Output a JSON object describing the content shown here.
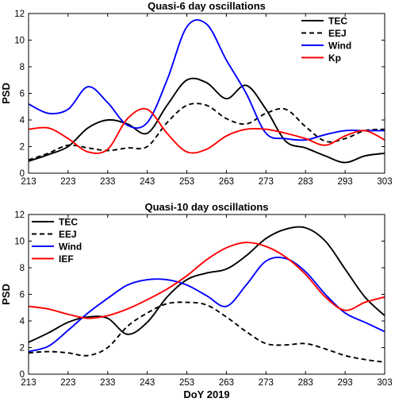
{
  "chart_data": [
    {
      "type": "line",
      "title": "Quasi-6 day oscillations",
      "ylabel": "PSD",
      "xlabel": "",
      "xlim": [
        213,
        303
      ],
      "ylim": [
        0,
        12
      ],
      "xticks": [
        213,
        223,
        233,
        243,
        253,
        263,
        273,
        283,
        293,
        303
      ],
      "yticks": [
        0,
        2,
        4,
        6,
        8,
        10,
        12
      ],
      "grid": false,
      "legend_position": "top-right",
      "series": [
        {
          "name": "TEC",
          "color": "#000000",
          "dash": "solid",
          "x": [
            213,
            218,
            223,
            228,
            233,
            238,
            243,
            248,
            253,
            258,
            263,
            268,
            273,
            278,
            283,
            288,
            293,
            298,
            303
          ],
          "y": [
            0.9,
            1.4,
            2.0,
            3.4,
            4.0,
            3.7,
            3.0,
            5.1,
            7.0,
            6.8,
            5.6,
            6.6,
            4.8,
            2.4,
            1.9,
            1.3,
            0.8,
            1.3,
            1.5
          ]
        },
        {
          "name": "EEJ",
          "color": "#000000",
          "dash": "dashed",
          "x": [
            213,
            218,
            223,
            228,
            233,
            238,
            243,
            248,
            253,
            258,
            263,
            268,
            273,
            278,
            283,
            288,
            293,
            298,
            303
          ],
          "y": [
            1.0,
            1.5,
            2.1,
            1.9,
            1.7,
            1.9,
            2.0,
            3.8,
            5.1,
            5.1,
            4.1,
            3.7,
            4.5,
            4.8,
            3.5,
            2.4,
            2.6,
            3.2,
            3.3
          ]
        },
        {
          "name": "Wind",
          "color": "#0000ff",
          "dash": "solid",
          "x": [
            213,
            218,
            223,
            228,
            233,
            238,
            243,
            248,
            253,
            258,
            263,
            268,
            273,
            278,
            283,
            288,
            293,
            298,
            303
          ],
          "y": [
            5.2,
            4.5,
            4.8,
            6.5,
            5.3,
            3.6,
            3.8,
            7.0,
            11.0,
            11.2,
            8.5,
            6.0,
            3.0,
            2.6,
            2.5,
            2.9,
            3.2,
            3.2,
            3.2
          ]
        },
        {
          "name": "Kp",
          "color": "#ff0000",
          "dash": "solid",
          "x": [
            213,
            218,
            223,
            228,
            233,
            238,
            243,
            248,
            253,
            258,
            263,
            268,
            273,
            278,
            283,
            288,
            293,
            298,
            303
          ],
          "y": [
            3.3,
            3.4,
            2.6,
            1.6,
            1.8,
            4.1,
            4.8,
            3.0,
            1.6,
            1.8,
            2.8,
            3.3,
            3.3,
            3.0,
            2.6,
            2.1,
            2.8,
            3.2,
            2.5
          ]
        }
      ]
    },
    {
      "type": "line",
      "title": "Quasi-10 day oscillations",
      "ylabel": "PSD",
      "xlabel": "DoY 2019",
      "xlim": [
        213,
        303
      ],
      "ylim": [
        0,
        12
      ],
      "xticks": [
        213,
        223,
        233,
        243,
        253,
        263,
        273,
        283,
        293,
        303
      ],
      "yticks": [
        0,
        2,
        4,
        6,
        8,
        10,
        12
      ],
      "grid": false,
      "legend_position": "top-left",
      "series": [
        {
          "name": "TEC",
          "color": "#000000",
          "dash": "solid",
          "x": [
            213,
            218,
            223,
            228,
            233,
            238,
            243,
            248,
            253,
            258,
            263,
            268,
            273,
            278,
            283,
            288,
            293,
            298,
            303
          ],
          "y": [
            2.4,
            3.1,
            3.9,
            4.3,
            4.2,
            3.0,
            3.9,
            5.8,
            7.1,
            7.6,
            7.9,
            8.9,
            10.2,
            10.9,
            11.0,
            10.0,
            7.9,
            5.8,
            4.4
          ]
        },
        {
          "name": "EEJ",
          "color": "#000000",
          "dash": "dashed",
          "x": [
            213,
            218,
            223,
            228,
            233,
            238,
            243,
            248,
            253,
            258,
            263,
            268,
            273,
            278,
            283,
            288,
            293,
            298,
            303
          ],
          "y": [
            1.6,
            1.7,
            1.6,
            1.4,
            2.0,
            3.6,
            4.6,
            5.3,
            5.4,
            5.2,
            4.3,
            3.2,
            2.3,
            2.2,
            2.3,
            1.9,
            1.4,
            1.1,
            0.9
          ]
        },
        {
          "name": "Wind",
          "color": "#0000ff",
          "dash": "solid",
          "x": [
            213,
            218,
            223,
            228,
            233,
            238,
            243,
            248,
            253,
            258,
            263,
            268,
            273,
            278,
            283,
            288,
            293,
            298,
            303
          ],
          "y": [
            1.7,
            2.1,
            3.3,
            4.6,
            5.7,
            6.7,
            7.1,
            7.1,
            6.7,
            5.9,
            5.1,
            6.7,
            8.5,
            8.7,
            7.7,
            6.0,
            4.6,
            3.9,
            3.2
          ]
        },
        {
          "name": "IEF",
          "color": "#ff0000",
          "dash": "solid",
          "x": [
            213,
            218,
            223,
            228,
            233,
            238,
            243,
            248,
            253,
            258,
            263,
            268,
            273,
            278,
            283,
            288,
            293,
            298,
            303
          ],
          "y": [
            5.1,
            4.9,
            4.5,
            4.2,
            4.4,
            4.9,
            5.6,
            6.4,
            7.4,
            8.6,
            9.5,
            9.9,
            9.6,
            8.8,
            7.5,
            5.8,
            4.8,
            5.4,
            5.8
          ]
        }
      ]
    }
  ]
}
